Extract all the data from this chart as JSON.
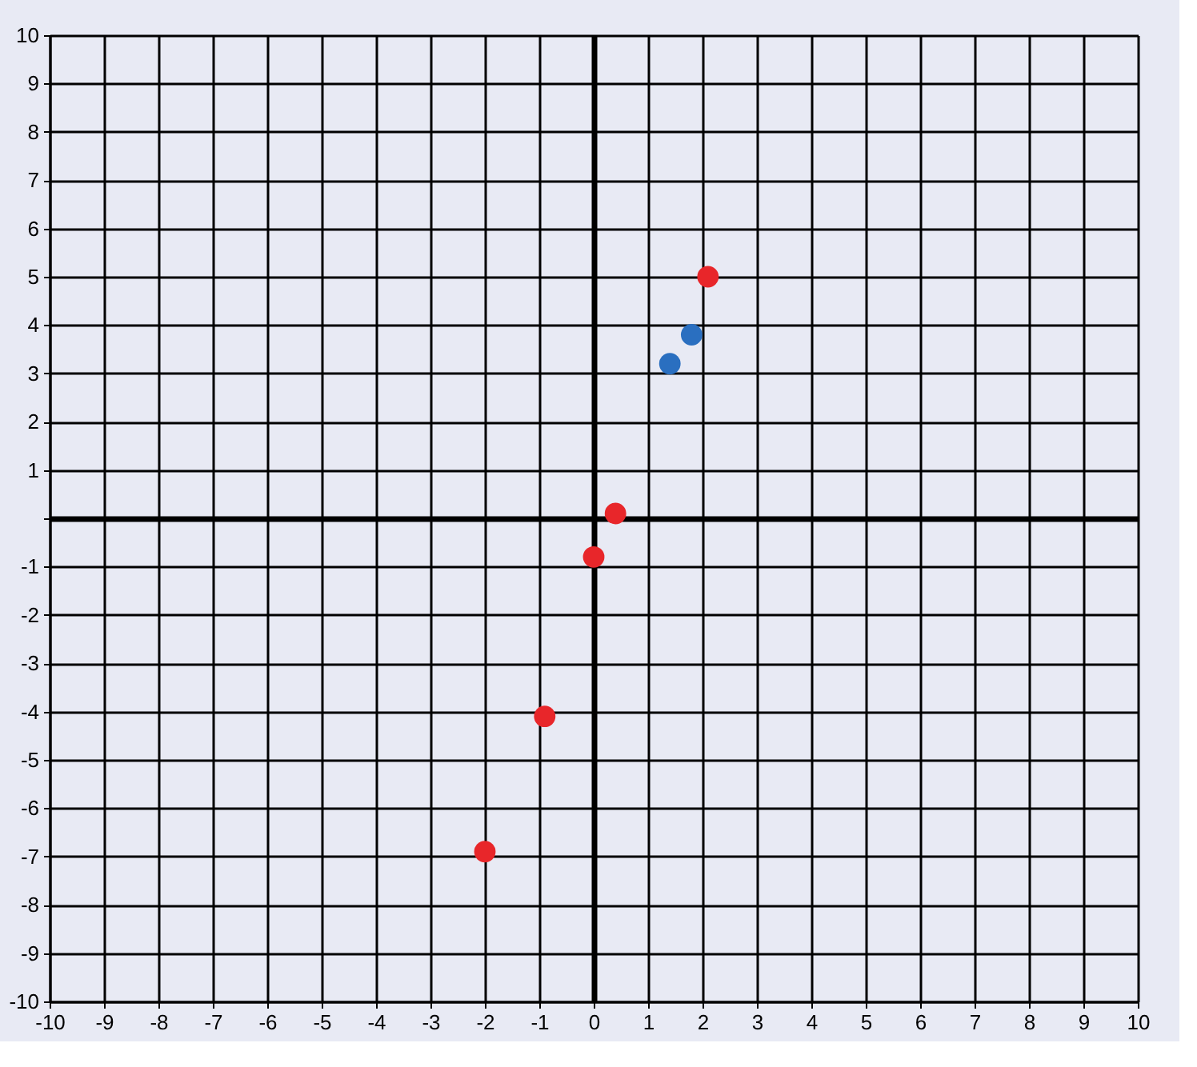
{
  "chart_data": {
    "type": "scatter",
    "marker": "circle",
    "grid": true,
    "xlim": [
      -10,
      10
    ],
    "ylim": [
      -10,
      10
    ],
    "xticks": [
      -10,
      -9,
      -8,
      -7,
      -6,
      -5,
      -4,
      -3,
      -2,
      -1,
      0,
      1,
      2,
      3,
      4,
      5,
      6,
      7,
      8,
      9,
      10
    ],
    "yticks": [
      -10,
      -9,
      -8,
      -7,
      -6,
      -5,
      -4,
      -3,
      -2,
      -1,
      {
        "value": 0,
        "label": null
      },
      1,
      2,
      3,
      4,
      5,
      6,
      7,
      8,
      9,
      10
    ],
    "series": [
      {
        "color": "#e8262a",
        "x": [
          2.1,
          0.4,
          0.0,
          -0.9,
          -2.0
        ],
        "values": [
          5.0,
          0.1,
          -0.8,
          -4.1,
          -6.9
        ]
      },
      {
        "color": "#2a6fc0",
        "x": [
          1.8,
          1.4
        ],
        "values": [
          3.8,
          3.2
        ]
      }
    ]
  }
}
